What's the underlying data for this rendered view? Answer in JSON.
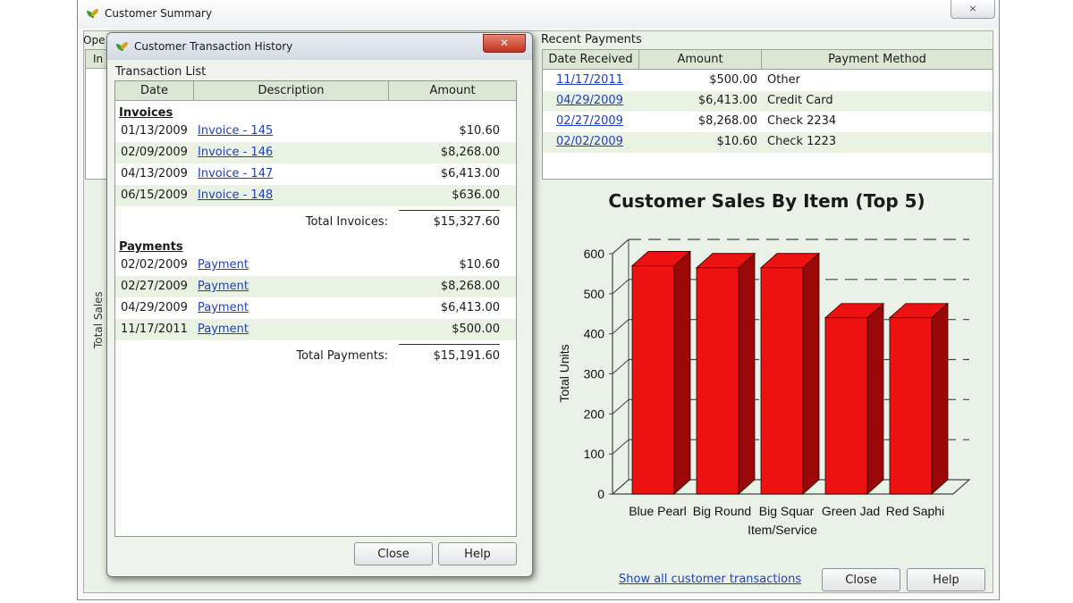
{
  "outer_window": {
    "title": "Customer Summary",
    "close_glyph": "⨯",
    "open_label": "Ope",
    "behind_header": "In",
    "behind_ylabel": "Total Sales"
  },
  "recent_payments": {
    "label": "Recent Payments",
    "columns": [
      "Date Received",
      "Amount",
      "Payment Method"
    ],
    "rows": [
      {
        "date": "11/17/2011",
        "amount": "$500.00",
        "method": "Other"
      },
      {
        "date": "04/29/2009",
        "amount": "$6,413.00",
        "method": "Credit Card"
      },
      {
        "date": "02/27/2009",
        "amount": "$8,268.00",
        "method": "Check 2234"
      },
      {
        "date": "02/02/2009",
        "amount": "$10.60",
        "method": "Check 1223"
      }
    ]
  },
  "chart_data": {
    "type": "bar",
    "title": "Customer Sales By Item (Top 5)",
    "xlabel": "Item/Service",
    "ylabel": "Total Units",
    "categories": [
      "Blue Pearl",
      "Big Round",
      "Big Squar",
      "Green Jad",
      "Red Saphi"
    ],
    "values": [
      570,
      565,
      565,
      440,
      440
    ],
    "ylim": [
      0,
      600
    ],
    "yticks": [
      0,
      100,
      200,
      300,
      400,
      500,
      600
    ],
    "bar_color": "#ee1111",
    "bar_side_color": "#9a0808",
    "grid": true
  },
  "footer": {
    "show_all_link": "Show all customer transactions",
    "close_label": "Close",
    "help_label": "Help"
  },
  "dialog": {
    "title": "Customer Transaction History",
    "close_glyph": "✕",
    "list_label": "Transaction List",
    "columns": [
      "Date",
      "Description",
      "Amount"
    ],
    "invoices_heading": "Invoices",
    "invoices": [
      {
        "date": "01/13/2009",
        "desc": "Invoice - 145",
        "amount": "$10.60"
      },
      {
        "date": "02/09/2009",
        "desc": "Invoice - 146",
        "amount": "$8,268.00"
      },
      {
        "date": "04/13/2009",
        "desc": "Invoice - 147",
        "amount": "$6,413.00"
      },
      {
        "date": "06/15/2009",
        "desc": "Invoice - 148",
        "amount": "$636.00"
      }
    ],
    "total_invoices_label": "Total Invoices:",
    "total_invoices": "$15,327.60",
    "payments_heading": "Payments",
    "payments": [
      {
        "date": "02/02/2009",
        "desc": "Payment",
        "amount": "$10.60"
      },
      {
        "date": "02/27/2009",
        "desc": "Payment",
        "amount": "$8,268.00"
      },
      {
        "date": "04/29/2009",
        "desc": "Payment",
        "amount": "$6,413.00"
      },
      {
        "date": "11/17/2011",
        "desc": "Payment",
        "amount": "$500.00"
      }
    ],
    "total_payments_label": "Total Payments:",
    "total_payments": "$15,191.60",
    "close_label": "Close",
    "help_label": "Help"
  }
}
